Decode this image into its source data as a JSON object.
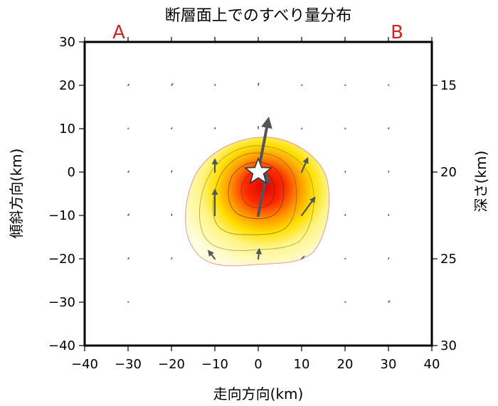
{
  "chart_data": {
    "type": "heatmap",
    "title": "断層面上でのすべり量分布",
    "xlabel": "走向方向(km)",
    "ylabel_left": "傾斜方向(km)",
    "ylabel_right": "深さ(km)",
    "side_labels": {
      "left": "A",
      "right": "B"
    },
    "xlim": [
      -40,
      40
    ],
    "ylim": [
      -40,
      30
    ],
    "x_ticks": [
      "−40",
      "−30",
      "−20",
      "−10",
      "0",
      "10",
      "20",
      "30",
      "40"
    ],
    "x_tick_values": [
      -40,
      -30,
      -20,
      -10,
      0,
      10,
      20,
      30,
      40
    ],
    "y_ticks_left": [
      "30",
      "20",
      "10",
      "0",
      "−10",
      "−20",
      "−30",
      "−40"
    ],
    "y_tick_values_left": [
      30,
      20,
      10,
      0,
      -10,
      -20,
      -30,
      -40
    ],
    "depth_mapping": {
      "dip_km": [
        0,
        20
      ],
      "depth_km": [
        20,
        15
      ]
    },
    "y_ticks_right": [
      "15",
      "20",
      "25",
      "30"
    ],
    "y_tick_depths_right": [
      15,
      20,
      25,
      30
    ],
    "grid": false,
    "hypocenter": {
      "x": 0,
      "y": 0,
      "marker": "star"
    },
    "slip_distribution": {
      "peak_center": [
        0,
        -4
      ],
      "colormap": [
        "#fffcd8",
        "#fff58a",
        "#ffe200",
        "#ff9c00",
        "#ff3300",
        "#e60000"
      ],
      "contour_levels": 4
    },
    "vectors": [
      {
        "x": -30,
        "y": 20,
        "dx": 0.2,
        "dy": 0.2
      },
      {
        "x": -20,
        "y": 20,
        "dx": 0.3,
        "dy": 0.4
      },
      {
        "x": -10,
        "y": 20,
        "dx": 0.1,
        "dy": 0.2
      },
      {
        "x": 0,
        "y": 20,
        "dx": 0.1,
        "dy": 0.5
      },
      {
        "x": 10,
        "y": 20,
        "dx": 0.1,
        "dy": 0.1
      },
      {
        "x": 20,
        "y": 20,
        "dx": 0.1,
        "dy": 0.1
      },
      {
        "x": 30,
        "y": 20,
        "dx": 0.1,
        "dy": 0.1
      },
      {
        "x": -30,
        "y": 10,
        "dx": 0.1,
        "dy": 0.1
      },
      {
        "x": -20,
        "y": 10,
        "dx": 0.1,
        "dy": 0.2
      },
      {
        "x": -10,
        "y": 10,
        "dx": 0.1,
        "dy": 0.2
      },
      {
        "x": 0,
        "y": 10,
        "dx": 0.0,
        "dy": 0.5
      },
      {
        "x": 10,
        "y": 10,
        "dx": 0.1,
        "dy": 0.1
      },
      {
        "x": 20,
        "y": 10,
        "dx": 0.1,
        "dy": 0.1
      },
      {
        "x": 30,
        "y": 10,
        "dx": 0.1,
        "dy": 0.2
      },
      {
        "x": -30,
        "y": 0,
        "dx": 0.2,
        "dy": 0.2
      },
      {
        "x": -20,
        "y": 0,
        "dx": 0.1,
        "dy": 0.3
      },
      {
        "x": -10,
        "y": 0,
        "dx": 0.0,
        "dy": 2.5
      },
      {
        "x": 0,
        "y": 0,
        "dx": 2.2,
        "dy": 11.5
      },
      {
        "x": 10,
        "y": 0,
        "dx": 1.2,
        "dy": 2.8
      },
      {
        "x": 20,
        "y": 0,
        "dx": 0.1,
        "dy": 0.2
      },
      {
        "x": 30,
        "y": 0,
        "dx": 0.1,
        "dy": 0.2
      },
      {
        "x": -30,
        "y": -10,
        "dx": 0.2,
        "dy": 0.3
      },
      {
        "x": -20,
        "y": -10,
        "dx": 0.1,
        "dy": 0.3
      },
      {
        "x": -10,
        "y": -10,
        "dx": 0.0,
        "dy": 5.5
      },
      {
        "x": 0,
        "y": -10,
        "dx": 1.8,
        "dy": 8.8
      },
      {
        "x": 10,
        "y": -10,
        "dx": 2.8,
        "dy": 3.8
      },
      {
        "x": 20,
        "y": -10,
        "dx": 0.1,
        "dy": 0.2
      },
      {
        "x": 30,
        "y": -10,
        "dx": 0.1,
        "dy": 0.2
      },
      {
        "x": -30,
        "y": -20,
        "dx": 0.2,
        "dy": 0.2
      },
      {
        "x": -20,
        "y": -20,
        "dx": 0.1,
        "dy": 0.2
      },
      {
        "x": -10,
        "y": -20,
        "dx": -1.2,
        "dy": 1.5
      },
      {
        "x": 0,
        "y": -20,
        "dx": 0.2,
        "dy": 1.8
      },
      {
        "x": 10,
        "y": -20,
        "dx": 0.6,
        "dy": 0.6
      },
      {
        "x": 20,
        "y": -20,
        "dx": 0.1,
        "dy": 0.1
      },
      {
        "x": 30,
        "y": -20,
        "dx": 0.1,
        "dy": 0.2
      },
      {
        "x": -30,
        "y": -30,
        "dx": 0.1,
        "dy": 0.1
      },
      {
        "x": 20,
        "y": -30,
        "dx": 0.1,
        "dy": 0.1
      },
      {
        "x": 30,
        "y": -30,
        "dx": 0.3,
        "dy": 0.3
      }
    ]
  }
}
